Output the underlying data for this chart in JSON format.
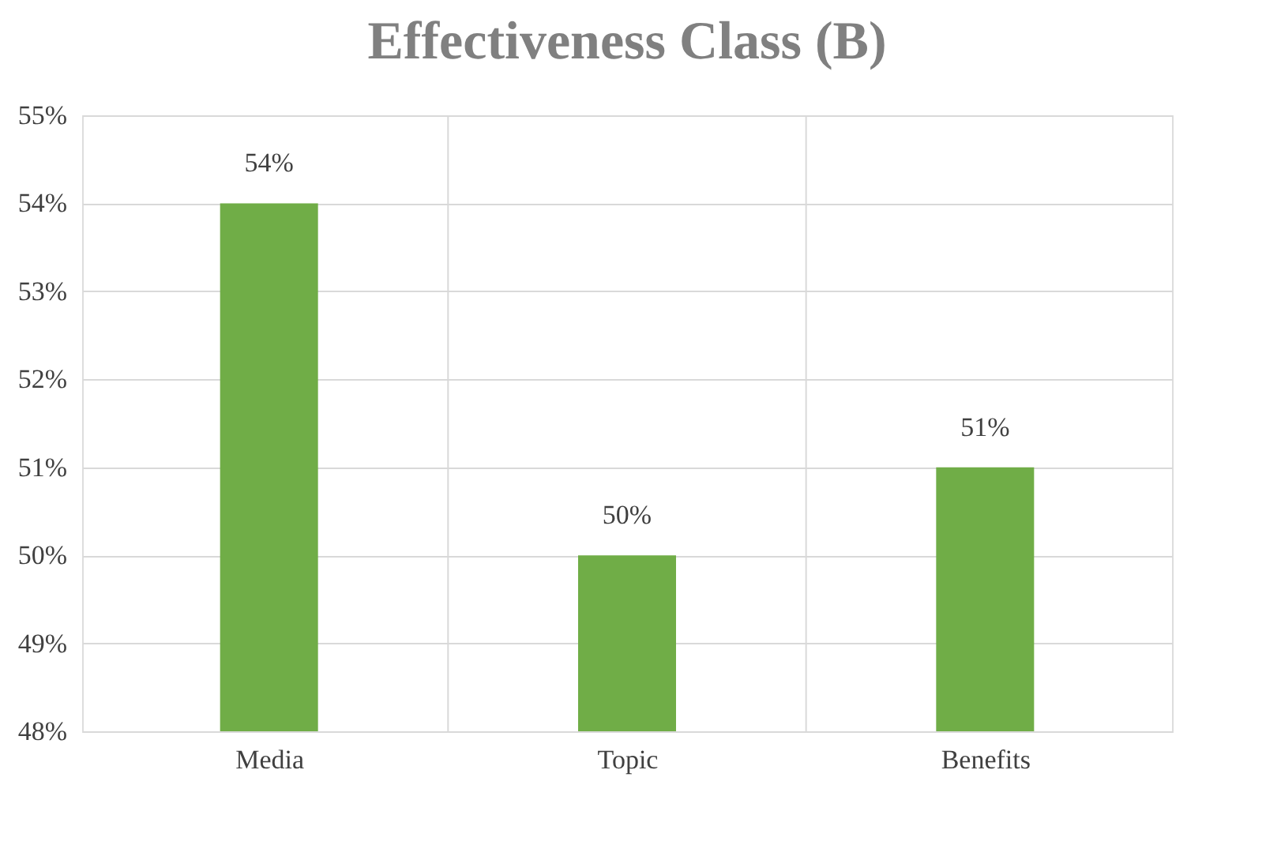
{
  "chart_data": {
    "type": "bar",
    "title": "Effectiveness Class (B)",
    "categories": [
      "Media",
      "Topic",
      "Benefits"
    ],
    "values": [
      54,
      50,
      51
    ],
    "color": "#70ad47",
    "value_labels": [
      "54%",
      "50%",
      "51%"
    ],
    "ylim": [
      48,
      55
    ],
    "yticks": [
      {
        "value": 48,
        "label": "48%"
      },
      {
        "value": 49,
        "label": "49%"
      },
      {
        "value": 50,
        "label": "50%"
      },
      {
        "value": 51,
        "label": "51%"
      },
      {
        "value": 52,
        "label": "52%"
      },
      {
        "value": 53,
        "label": "53%"
      },
      {
        "value": 54,
        "label": "54%"
      },
      {
        "value": 55,
        "label": "55%"
      }
    ],
    "grid": true
  }
}
